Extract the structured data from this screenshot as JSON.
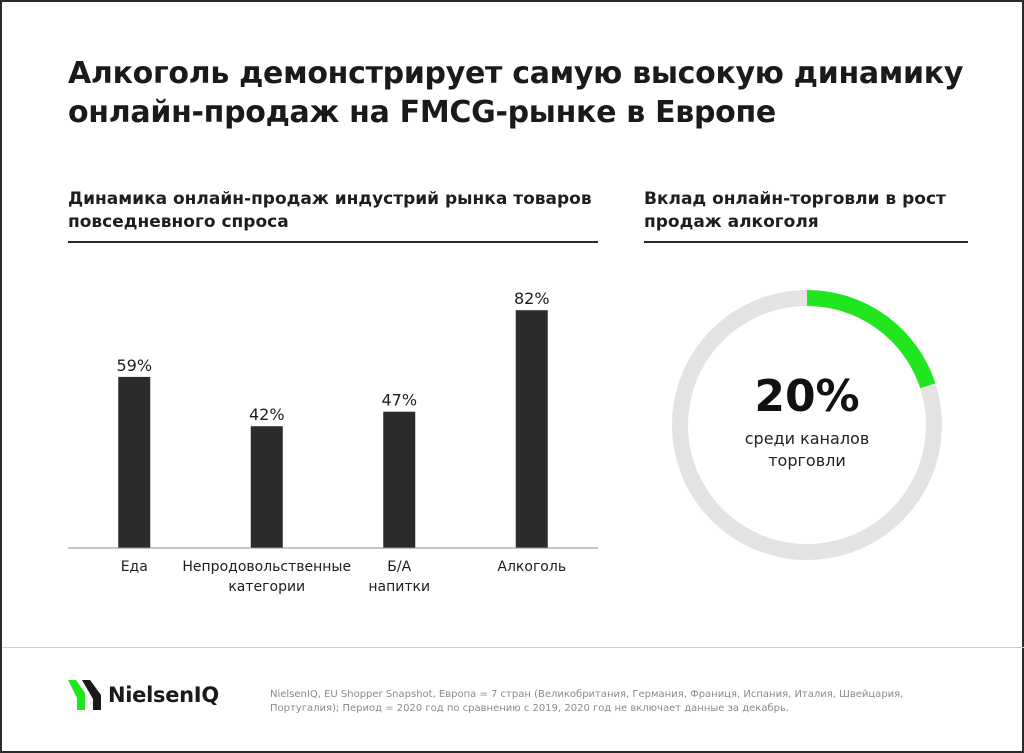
{
  "header": {
    "title": "Алкоголь демонстрирует самую высокую динамику онлайн-продаж на FMCG-рынке в Европе"
  },
  "left_panel": {
    "subtitle": "Динамика онлайн-продаж индустрий рынка товаров повседневного спроса"
  },
  "right_panel": {
    "subtitle": "Вклад онлайн-торговли в рост продаж алкоголя",
    "value_label": "20%",
    "caption": "среди каналов торговли"
  },
  "chart_data": [
    {
      "type": "bar",
      "title": "Динамика онлайн-продаж индустрий рынка товаров повседневного спроса",
      "categories": [
        [
          "Еда"
        ],
        [
          "Непродовольственные",
          "категории"
        ],
        [
          "Б/А",
          "напитки"
        ],
        [
          "Алкоголь"
        ]
      ],
      "values": [
        59,
        42,
        47,
        82
      ],
      "data_labels": [
        "59%",
        "42%",
        "47%",
        "82%"
      ],
      "unit": "%",
      "ylim": [
        0,
        100
      ],
      "grid": false,
      "bar_color": "#2b2b2b"
    },
    {
      "type": "pie",
      "title": "Вклад онлайн-торговли в рост продаж алкоголя",
      "slices": [
        {
          "value": 20,
          "color": "#21e51f"
        },
        {
          "value": 80,
          "color": "#e3e3e3"
        }
      ],
      "center_label": "20%"
    }
  ],
  "footer": {
    "brand": "NielsenIQ",
    "logo_icon": "nielseniq-chevrons-icon",
    "brand_color": "#21e51f",
    "source": "NielsenIQ, EU Shopper Snapshot, Европа = 7 стран (Великобритания, Германия, Франиця, Испания, Италия, Швейцария, Португалия); Период = 2020 год по сравнению с 2019, 2020 год не включает данные за декабрь."
  }
}
